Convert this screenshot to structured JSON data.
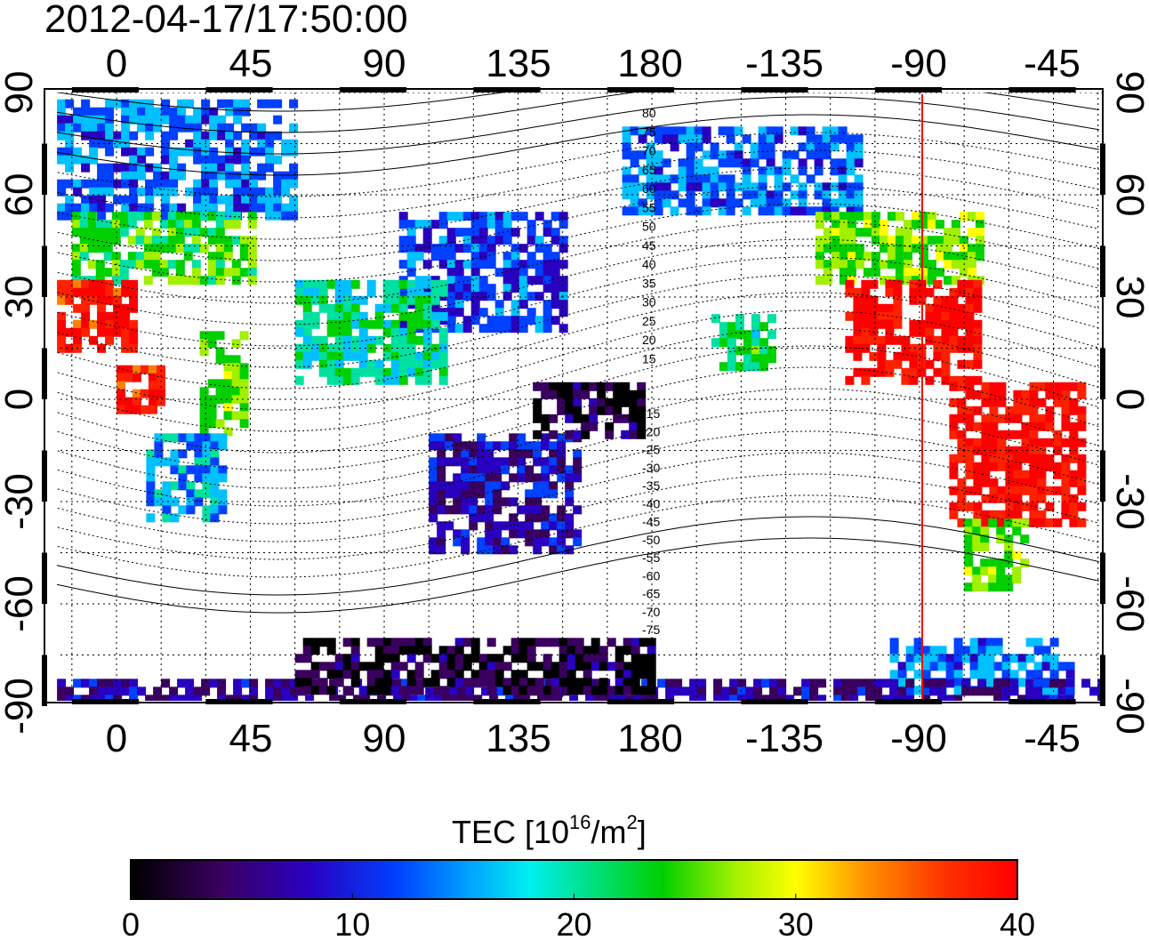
{
  "timestamp": "2012-04-17/17:50:00",
  "lon_ticks": [
    "0",
    "45",
    "90",
    "135",
    "180",
    "-135",
    "-90",
    "-45"
  ],
  "lat_ticks": [
    "90",
    "60",
    "30",
    "0",
    "-30",
    "-60",
    "-90"
  ],
  "contour_levels": [
    "80",
    "75",
    "70",
    "65",
    "60",
    "55",
    "50",
    "45",
    "40",
    "35",
    "30",
    "25",
    "20",
    "15",
    "-15",
    "-20",
    "-25",
    "-30",
    "-35",
    "-40",
    "-45",
    "-50",
    "-55",
    "-60",
    "-65",
    "-70",
    "-75"
  ],
  "colorbar": {
    "label_main": "TEC  [10",
    "label_exp": "16",
    "label_unit": "/m",
    "label_exp2": "2",
    "label_end": "]",
    "ticks": [
      "0",
      "10",
      "20",
      "30",
      "40"
    ],
    "min": 0,
    "max": 40
  },
  "marker_longitude": -90,
  "marker_color": "#ff0000",
  "colors": {
    "scale": [
      "#000000",
      "#3a0060",
      "#2a00c0",
      "#0040ff",
      "#00c0ff",
      "#00e0a0",
      "#00d000",
      "#a0f000",
      "#ffff00",
      "#ff8000",
      "#ff2000",
      "#ff0000"
    ]
  },
  "chart_data": {
    "type": "heatmap",
    "title": "2012-04-17/17:50:00",
    "x_label": "",
    "y_label": "",
    "x_range_deg": [
      -20,
      340
    ],
    "y_range_deg": [
      -90,
      90
    ],
    "value_label": "TEC [10^16/m^2]",
    "value_range": [
      0,
      40
    ],
    "regions": [
      {
        "lon": [
          -20,
          60
        ],
        "lat": [
          55,
          88
        ],
        "tec": 12
      },
      {
        "lon": [
          -15,
          45
        ],
        "lat": [
          35,
          55
        ],
        "tec": 22
      },
      {
        "lon": [
          -20,
          5
        ],
        "lat": [
          15,
          35
        ],
        "tec": 38
      },
      {
        "lon": [
          0,
          15
        ],
        "lat": [
          -2,
          10
        ],
        "tec": 37
      },
      {
        "lon": [
          28,
          42
        ],
        "lat": [
          -10,
          20
        ],
        "tec": 24
      },
      {
        "lon": [
          10,
          35
        ],
        "lat": [
          -35,
          -10
        ],
        "tec": 14
      },
      {
        "lon": [
          95,
          150
        ],
        "lat": [
          20,
          55
        ],
        "tec": 10
      },
      {
        "lon": [
          60,
          110
        ],
        "lat": [
          5,
          35
        ],
        "tec": 18
      },
      {
        "lon": [
          105,
          155
        ],
        "lat": [
          -45,
          -10
        ],
        "tec": 7
      },
      {
        "lon": [
          140,
          175
        ],
        "lat": [
          -10,
          5
        ],
        "tec": 2
      },
      {
        "lon": [
          -190,
          -110
        ],
        "lat": [
          55,
          80
        ],
        "tec": 12
      },
      {
        "lon": [
          -125,
          -70
        ],
        "lat": [
          35,
          55
        ],
        "tec": 24
      },
      {
        "lon": [
          -115,
          -70
        ],
        "lat": [
          5,
          35
        ],
        "tec": 39
      },
      {
        "lon": [
          -80,
          -35
        ],
        "lat": [
          -35,
          5
        ],
        "tec": 39
      },
      {
        "lon": [
          -75,
          -55
        ],
        "lat": [
          -55,
          -35
        ],
        "tec": 24
      },
      {
        "lon": [
          -100,
          -40
        ],
        "lat": [
          -85,
          -70
        ],
        "tec": 12
      },
      {
        "lon": [
          -20,
          340
        ],
        "lat": [
          -90,
          -82
        ],
        "tec": 6
      },
      {
        "lon": [
          60,
          180
        ],
        "lat": [
          -85,
          -70
        ],
        "tec": 2
      },
      {
        "lon": [
          -160,
          -140
        ],
        "lat": [
          10,
          25
        ],
        "tec": 20
      }
    ]
  }
}
